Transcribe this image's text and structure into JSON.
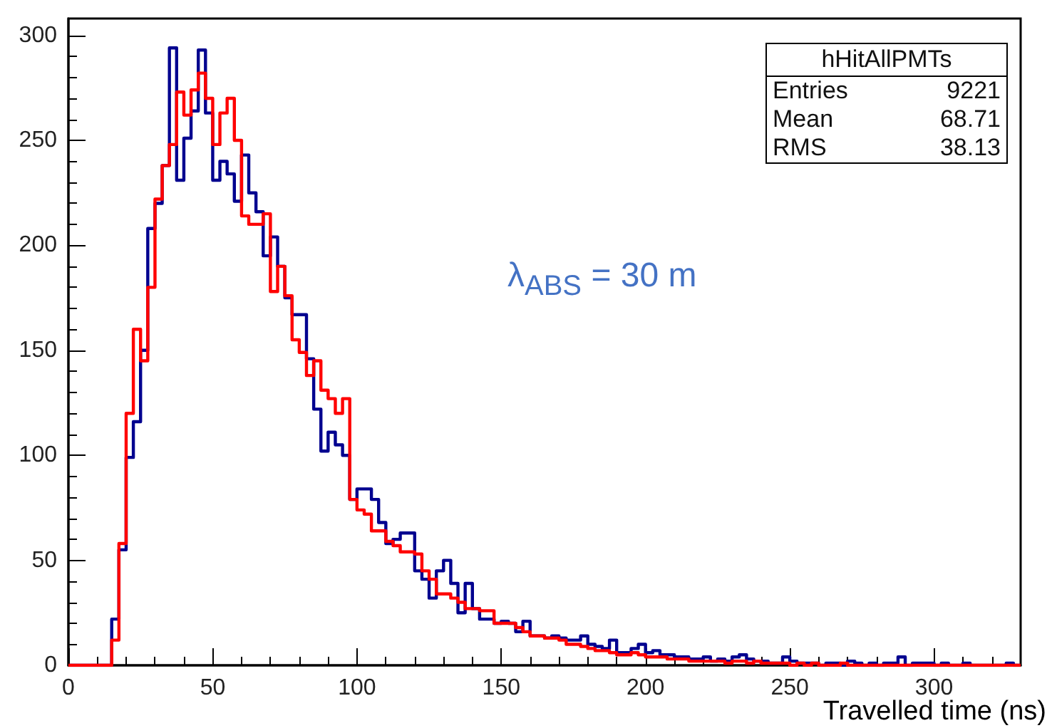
{
  "chart_data": {
    "type": "histogram",
    "xlabel": "Travelled time (ns)",
    "bins": [
      0,
      2.5,
      5,
      7.5,
      10,
      12.5,
      15,
      17.5,
      20,
      22.5,
      25,
      27.5,
      30,
      32.5,
      35,
      37.5,
      40,
      42.5,
      45,
      47.5,
      50,
      52.5,
      55,
      57.5,
      60,
      62.5,
      65,
      67.5,
      70,
      72.5,
      75,
      77.5,
      80,
      82.5,
      85,
      87.5,
      90,
      92.5,
      95,
      97.5,
      100,
      102.5,
      105,
      107.5,
      110,
      112.5,
      115,
      117.5,
      120,
      122.5,
      125,
      127.5,
      130,
      132.5,
      135,
      137.5,
      140,
      142.5,
      145,
      147.5,
      150,
      152.5,
      155,
      157.5,
      160,
      162.5,
      165,
      167.5,
      170,
      172.5,
      175,
      177.5,
      180,
      182.5,
      185,
      187.5,
      190,
      192.5,
      195,
      197.5,
      200,
      202.5,
      205,
      207.5,
      210,
      212.5,
      215,
      217.5,
      220,
      222.5,
      225,
      227.5,
      230,
      232.5,
      235,
      237.5,
      240,
      242.5,
      245,
      247.5,
      250,
      252.5,
      255,
      257.5,
      260,
      262.5,
      265,
      267.5,
      270,
      272.5,
      275,
      277.5,
      280,
      282.5,
      285,
      287.5,
      290,
      292.5,
      295,
      297.5,
      300,
      302.5,
      305,
      307.5,
      310,
      312.5,
      315,
      317.5,
      320,
      322.5,
      325,
      327.5,
      330
    ],
    "series": [
      {
        "color": "#00008f",
        "values": [
          0,
          0,
          0,
          0,
          0,
          0,
          22,
          55,
          99,
          116,
          150,
          208,
          220,
          238,
          294,
          231,
          251,
          264,
          293,
          263,
          231,
          240,
          234,
          221,
          243,
          225,
          216,
          195,
          204,
          190,
          175,
          167,
          167,
          146,
          122,
          102,
          111,
          105,
          100,
          79,
          84,
          84,
          79,
          68,
          58,
          60,
          63,
          63,
          45,
          41,
          32,
          45,
          50,
          39,
          25,
          39,
          27,
          22,
          22,
          20,
          21,
          20,
          16,
          21,
          14,
          14,
          13,
          14,
          13,
          12,
          12,
          14,
          10,
          9,
          8,
          12,
          6,
          6,
          8,
          10,
          6,
          7,
          5,
          5,
          4,
          4,
          3,
          3,
          4,
          2,
          3,
          2,
          4,
          5,
          3,
          2,
          2,
          1,
          1,
          4,
          2,
          1,
          1,
          1,
          0,
          1,
          1,
          0,
          2,
          1,
          0,
          1,
          0,
          1,
          1,
          4,
          0,
          1,
          1,
          1,
          0,
          1,
          0,
          0,
          1,
          0,
          0,
          0,
          0,
          0,
          1,
          0
        ]
      },
      {
        "color": "#ff0000",
        "values": [
          0,
          0,
          0,
          0,
          0,
          0,
          12,
          58,
          120,
          160,
          145,
          180,
          222,
          238,
          248,
          273,
          262,
          274,
          282,
          270,
          248,
          263,
          270,
          250,
          214,
          210,
          210,
          215,
          178,
          190,
          176,
          155,
          149,
          138,
          145,
          131,
          127,
          120,
          127,
          79,
          74,
          72,
          64,
          64,
          59,
          57,
          54,
          54,
          53,
          45,
          41,
          34,
          34,
          32,
          30,
          27,
          27,
          26,
          26,
          20,
          20,
          20,
          18,
          16,
          14,
          14,
          13,
          13,
          12,
          10,
          10,
          9,
          8,
          7,
          7,
          6,
          5,
          5,
          6,
          5,
          4,
          4,
          4,
          3,
          3,
          3,
          2,
          2,
          2,
          2,
          2,
          1,
          2,
          2,
          1,
          2,
          1,
          1,
          1,
          1,
          0,
          1,
          0,
          1,
          0,
          0,
          0,
          1,
          0,
          0,
          0,
          0,
          0,
          0,
          0,
          0,
          0,
          0,
          0,
          0,
          0,
          0,
          0,
          0,
          0,
          0,
          0,
          0,
          0,
          0,
          0,
          0
        ]
      }
    ],
    "xlim": [
      0,
      330
    ],
    "xticks": [
      0,
      50,
      100,
      150,
      200,
      250,
      300
    ],
    "ylim": [
      0,
      308
    ],
    "yticks": [
      0,
      50,
      100,
      150,
      200,
      250,
      300
    ],
    "grid": false,
    "annotations": [
      "hHitAllPMTs",
      "Entries",
      "9221",
      "Mean",
      "68.71",
      "RMS",
      "38.13",
      "λ$_{ABS}$ = 30 m"
    ]
  }
}
